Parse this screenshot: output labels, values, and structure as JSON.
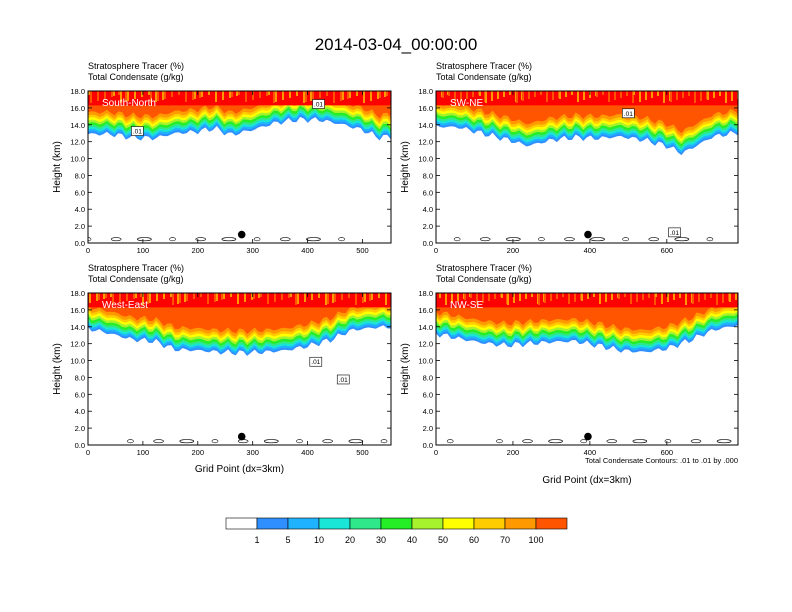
{
  "title": "2014-03-04_00:00:00",
  "field_labels": [
    "Stratosphere Tracer   (%)",
    "Total Condensate   (g/kg)"
  ],
  "ylabel": "Height (km)",
  "xlabel": "Grid Point (dx=3km)",
  "contour_note": "Total Condensate Contours: .01 to .01 by .000",
  "colors": {
    "level_colors": [
      "#ffffff",
      "#2f8fff",
      "#1fb3ff",
      "#19e6d6",
      "#2ee88a",
      "#26ee26",
      "#a6f22c",
      "#ffff00",
      "#ffcc00",
      "#ff9900",
      "#ff5500",
      "#ff0000"
    ]
  },
  "colorbar": {
    "labels": [
      "1",
      "5",
      "10",
      "20",
      "30",
      "40",
      "50",
      "60",
      "70",
      "100"
    ]
  },
  "chart_data": [
    {
      "type": "heatmap",
      "panel_label": "South-North",
      "xlim": [
        0,
        552
      ],
      "ylim": [
        0,
        18
      ],
      "xticks": [
        "0",
        "100",
        "200",
        "300",
        "400",
        "500"
      ],
      "xtick_values": [
        0,
        100,
        200,
        300,
        400,
        500
      ],
      "yticks": [
        "0.0",
        "2.0",
        "4.0",
        "6.0",
        "8.0",
        "10.0",
        "12.0",
        "14.0",
        "16.0",
        "18.0"
      ],
      "ytick_values": [
        0,
        2,
        4,
        6,
        8,
        10,
        12,
        14,
        16,
        18
      ],
      "tracer_base_km": [
        [
          0,
          12.9
        ],
        [
          40,
          12.9
        ],
        [
          80,
          12.5
        ],
        [
          120,
          12.4
        ],
        [
          160,
          13.0
        ],
        [
          200,
          13.2
        ],
        [
          230,
          13.6
        ],
        [
          260,
          12.8
        ],
        [
          300,
          13.4
        ],
        [
          340,
          14.2
        ],
        [
          380,
          14.6
        ],
        [
          420,
          14.6
        ],
        [
          460,
          14.1
        ],
        [
          500,
          13.4
        ],
        [
          530,
          12.5
        ],
        [
          552,
          12.6
        ]
      ],
      "contour_boxes": [
        {
          "x": 90,
          "y": 13.2,
          "text": ".01"
        },
        {
          "x": 420,
          "y": 16.4,
          "text": ".01"
        }
      ],
      "marker": {
        "x": 280,
        "y": 1.0
      }
    },
    {
      "type": "heatmap",
      "panel_label": "SW-NE",
      "xlim": [
        0,
        785
      ],
      "ylim": [
        0,
        18
      ],
      "xticks": [
        "0",
        "200",
        "400",
        "600"
      ],
      "xtick_values": [
        0,
        200,
        400,
        600
      ],
      "yticks": [
        "0.0",
        "2.0",
        "4.0",
        "6.0",
        "8.0",
        "10.0",
        "12.0",
        "14.0",
        "16.0",
        "18.0"
      ],
      "ytick_values": [
        0,
        2,
        4,
        6,
        8,
        10,
        12,
        14,
        16,
        18
      ],
      "tracer_base_km": [
        [
          0,
          13.8
        ],
        [
          60,
          13.7
        ],
        [
          120,
          13.0
        ],
        [
          180,
          12.3
        ],
        [
          240,
          11.5
        ],
        [
          300,
          12.2
        ],
        [
          360,
          12.5
        ],
        [
          420,
          12.4
        ],
        [
          480,
          12.6
        ],
        [
          540,
          12.2
        ],
        [
          600,
          11.5
        ],
        [
          640,
          10.6
        ],
        [
          680,
          11.6
        ],
        [
          720,
          12.6
        ],
        [
          785,
          13.1
        ]
      ],
      "contour_boxes": [
        {
          "x": 500,
          "y": 15.3,
          "text": ".01"
        },
        {
          "x": 620,
          "y": 1.2,
          "text": ".01"
        }
      ],
      "marker": {
        "x": 395,
        "y": 1.0
      }
    },
    {
      "type": "heatmap",
      "panel_label": "West-East",
      "xlim": [
        0,
        552
      ],
      "ylim": [
        0,
        18
      ],
      "xticks": [
        "0",
        "100",
        "200",
        "300",
        "400",
        "500"
      ],
      "xtick_values": [
        0,
        100,
        200,
        300,
        400,
        500
      ],
      "yticks": [
        "0.0",
        "2.0",
        "4.0",
        "6.0",
        "8.0",
        "10.0",
        "12.0",
        "14.0",
        "16.0",
        "18.0"
      ],
      "ytick_values": [
        0,
        2,
        4,
        6,
        8,
        10,
        12,
        14,
        16,
        18
      ],
      "tracer_base_km": [
        [
          0,
          13.8
        ],
        [
          40,
          13.2
        ],
        [
          80,
          12.5
        ],
        [
          120,
          12.3
        ],
        [
          160,
          11.3
        ],
        [
          200,
          11.2
        ],
        [
          240,
          11.0
        ],
        [
          280,
          10.9
        ],
        [
          320,
          11.0
        ],
        [
          360,
          11.2
        ],
        [
          400,
          11.7
        ],
        [
          440,
          12.4
        ],
        [
          480,
          13.6
        ],
        [
          520,
          13.9
        ],
        [
          552,
          14.0
        ]
      ],
      "contour_boxes": [
        {
          "x": 415,
          "y": 9.8,
          "text": ".01"
        },
        {
          "x": 465,
          "y": 7.7,
          "text": ".01"
        }
      ],
      "marker": {
        "x": 280,
        "y": 1.0
      }
    },
    {
      "type": "heatmap",
      "panel_label": "NW-SE",
      "xlim": [
        0,
        785
      ],
      "ylim": [
        0,
        18
      ],
      "xticks": [
        "0",
        "200",
        "400",
        "600"
      ],
      "xtick_values": [
        0,
        200,
        400,
        600
      ],
      "yticks": [
        "0.0",
        "2.0",
        "4.0",
        "6.0",
        "8.0",
        "10.0",
        "12.0",
        "14.0",
        "16.0",
        "18.0"
      ],
      "ytick_values": [
        0,
        2,
        4,
        6,
        8,
        10,
        12,
        14,
        16,
        18
      ],
      "tracer_base_km": [
        [
          0,
          13.2
        ],
        [
          60,
          12.6
        ],
        [
          120,
          12.1
        ],
        [
          180,
          11.8
        ],
        [
          240,
          12.0
        ],
        [
          300,
          12.2
        ],
        [
          360,
          12.3
        ],
        [
          420,
          11.8
        ],
        [
          480,
          11.2
        ],
        [
          540,
          11.0
        ],
        [
          600,
          11.4
        ],
        [
          660,
          12.4
        ],
        [
          720,
          13.6
        ],
        [
          785,
          14.2
        ]
      ],
      "contour_boxes": [],
      "marker": {
        "x": 395,
        "y": 1.0
      }
    }
  ]
}
